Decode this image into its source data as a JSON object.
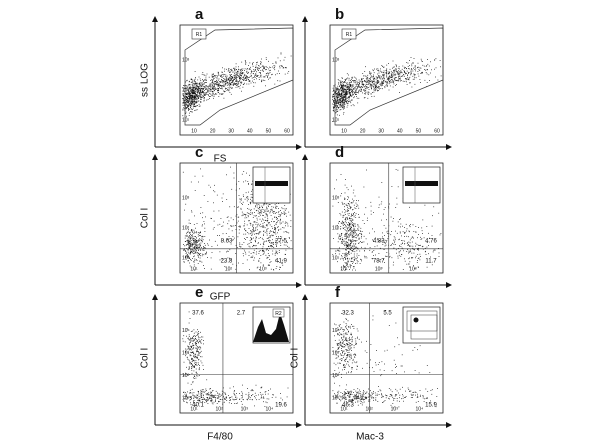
{
  "panels": [
    {
      "letter": "a",
      "y_label": "ss LOG",
      "x_label": "FS",
      "gate": "R1",
      "x_ticks": [
        "10",
        "20",
        "30",
        "40",
        "50",
        "60"
      ],
      "y_ticks": [
        "10¹",
        "10²",
        "10³"
      ]
    },
    {
      "letter": "b",
      "gate": "R1",
      "x_ticks": [
        "10",
        "20",
        "30",
        "40",
        "50",
        "60"
      ],
      "y_ticks": [
        "10¹",
        "10²",
        "10³"
      ]
    },
    {
      "letter": "c",
      "y_label": "Col I",
      "x_label": "GFP",
      "x_ticks": [
        "10¹",
        "10²",
        "10³"
      ],
      "y_ticks": [
        "10¹",
        "10²",
        "10³"
      ],
      "quadrants": [
        "8.63",
        "27.5",
        "23.8",
        "41.9"
      ]
    },
    {
      "letter": "d",
      "x_ticks": [
        "10¹",
        "10²",
        "10³"
      ],
      "y_ticks": [
        "10¹",
        "10²",
        "10³"
      ],
      "quadrants": [
        "4.83",
        "4.76",
        "78.7",
        "11.7"
      ]
    },
    {
      "letter": "e",
      "y_label": "Col I",
      "x_label": "F4/80",
      "gate": "R2",
      "x_ticks": [
        "10¹",
        "10²",
        "10³",
        "10⁴"
      ],
      "y_ticks": [
        "10¹",
        "10²",
        "10³",
        "10⁴"
      ],
      "quadrants": [
        "37.6",
        "2.7",
        "40.1",
        "19.6"
      ]
    },
    {
      "letter": "f",
      "y_label": "Col I",
      "x_label": "Mac-3",
      "x_ticks": [
        "10¹",
        "10²",
        "10³",
        "10⁴"
      ],
      "y_ticks": [
        "10¹",
        "10²",
        "10³",
        "10⁴"
      ],
      "quadrants": [
        "32.3",
        "5.5",
        "46.3",
        "15.9"
      ]
    }
  ]
}
